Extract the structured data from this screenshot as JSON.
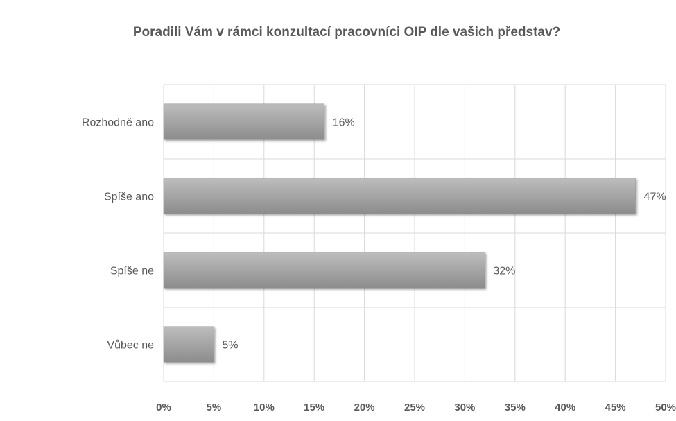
{
  "chart_data": {
    "type": "bar",
    "orientation": "horizontal",
    "title": "Poradili Vám v rámci konzultací pracovníci OIP dle vašich představ?",
    "categories": [
      "Rozhodně ano",
      "Spíše ano",
      "Spíše ne",
      "Vůbec ne"
    ],
    "values": [
      16,
      47,
      32,
      5
    ],
    "value_labels": [
      "16%",
      "47%",
      "32%",
      "5%"
    ],
    "x_ticks": [
      "0%",
      "5%",
      "10%",
      "15%",
      "20%",
      "25%",
      "30%",
      "35%",
      "40%",
      "45%",
      "50%"
    ],
    "xlim": [
      0,
      50
    ],
    "grid": true,
    "legend": false,
    "bar_color": "#a6a6a6"
  }
}
